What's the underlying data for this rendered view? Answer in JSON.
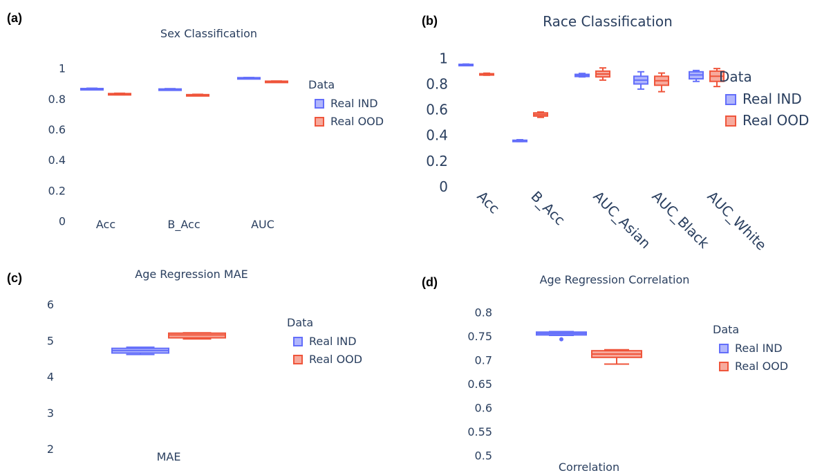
{
  "colors": {
    "ind": "#636efa",
    "ood": "#ef553b",
    "text": "#2a3f5f"
  },
  "chart_data": [
    {
      "id": "a",
      "type": "box",
      "panel_label": "(a)",
      "title": "Sex Classification",
      "categories": [
        "Acc",
        "B_Acc",
        "AUC"
      ],
      "ylim": [
        0,
        1.05
      ],
      "yticks": [
        {
          "value": 0,
          "label": "0"
        },
        {
          "value": 0.2,
          "label": "0.2"
        },
        {
          "value": 0.4,
          "label": "0.4"
        },
        {
          "value": 0.6,
          "label": "0.6"
        },
        {
          "value": 0.8,
          "label": "0.8"
        },
        {
          "value": 1,
          "label": "1"
        }
      ],
      "legend": {
        "title": "Data",
        "placement": "right"
      },
      "series": [
        {
          "name": "Real IND",
          "boxes": [
            {
              "min": 0.862,
              "q1": 0.864,
              "median": 0.866,
              "q3": 0.869,
              "max": 0.871
            },
            {
              "min": 0.86,
              "q1": 0.862,
              "median": 0.864,
              "q3": 0.866,
              "max": 0.868
            },
            {
              "min": 0.935,
              "q1": 0.937,
              "median": 0.938,
              "q3": 0.94,
              "max": 0.941
            }
          ]
        },
        {
          "name": "Real OOD",
          "boxes": [
            {
              "min": 0.828,
              "q1": 0.83,
              "median": 0.833,
              "q3": 0.836,
              "max": 0.838
            },
            {
              "min": 0.822,
              "q1": 0.824,
              "median": 0.826,
              "q3": 0.829,
              "max": 0.831
            },
            {
              "min": 0.912,
              "q1": 0.914,
              "median": 0.915,
              "q3": 0.917,
              "max": 0.918
            }
          ]
        }
      ]
    },
    {
      "id": "b",
      "type": "box",
      "panel_label": "(b)",
      "title": "Race Classification",
      "categories": [
        "Acc",
        "B_Acc",
        "AUC_Asian",
        "AUC_Black",
        "AUC_White"
      ],
      "ylim": [
        0,
        1.05
      ],
      "yticks": [
        {
          "value": 0,
          "label": "0"
        },
        {
          "value": 0.2,
          "label": "0.2"
        },
        {
          "value": 0.4,
          "label": "0.4"
        },
        {
          "value": 0.6,
          "label": "0.6"
        },
        {
          "value": 0.8,
          "label": "0.8"
        },
        {
          "value": 1,
          "label": "1"
        }
      ],
      "legend": {
        "title": "Data",
        "placement": "right"
      },
      "series": [
        {
          "name": "Real IND",
          "boxes": [
            {
              "min": 0.945,
              "q1": 0.948,
              "median": 0.95,
              "q3": 0.953,
              "max": 0.955
            },
            {
              "min": 0.352,
              "q1": 0.355,
              "median": 0.358,
              "q3": 0.362,
              "max": 0.366
            },
            {
              "min": 0.855,
              "q1": 0.858,
              "median": 0.865,
              "q3": 0.875,
              "max": 0.882
            },
            {
              "min": 0.76,
              "q1": 0.8,
              "median": 0.83,
              "q3": 0.86,
              "max": 0.895
            },
            {
              "min": 0.82,
              "q1": 0.84,
              "median": 0.87,
              "q3": 0.895,
              "max": 0.905
            }
          ]
        },
        {
          "name": "Real OOD",
          "boxes": [
            {
              "min": 0.868,
              "q1": 0.872,
              "median": 0.876,
              "q3": 0.88,
              "max": 0.884
            },
            {
              "min": 0.54,
              "q1": 0.55,
              "median": 0.562,
              "q3": 0.575,
              "max": 0.582
            },
            {
              "min": 0.83,
              "q1": 0.855,
              "median": 0.878,
              "q3": 0.9,
              "max": 0.925
            },
            {
              "min": 0.74,
              "q1": 0.79,
              "median": 0.825,
              "q3": 0.86,
              "max": 0.885
            },
            {
              "min": 0.78,
              "q1": 0.82,
              "median": 0.86,
              "q3": 0.9,
              "max": 0.92
            }
          ]
        }
      ]
    },
    {
      "id": "c",
      "type": "box",
      "panel_label": "(c)",
      "title": "Age Regression MAE",
      "categories": [
        "MAE"
      ],
      "ylim": [
        1.8,
        6.2
      ],
      "yticks": [
        {
          "value": 2,
          "label": "2"
        },
        {
          "value": 3,
          "label": "3"
        },
        {
          "value": 4,
          "label": "4"
        },
        {
          "value": 5,
          "label": "5"
        },
        {
          "value": 6,
          "label": "6"
        }
      ],
      "legend": {
        "title": "Data",
        "placement": "right"
      },
      "series": [
        {
          "name": "Real IND",
          "boxes": [
            {
              "min": 4.62,
              "q1": 4.66,
              "median": 4.73,
              "q3": 4.79,
              "max": 4.82
            }
          ]
        },
        {
          "name": "Real OOD",
          "boxes": [
            {
              "min": 5.05,
              "q1": 5.08,
              "median": 5.16,
              "q3": 5.21,
              "max": 5.22
            }
          ]
        }
      ]
    },
    {
      "id": "d",
      "type": "box",
      "panel_label": "(d)",
      "title": "Age Regression Correlation",
      "categories": [
        "Correlation"
      ],
      "ylim": [
        0.49,
        0.81
      ],
      "yticks": [
        {
          "value": 0.5,
          "label": "0.5"
        },
        {
          "value": 0.55,
          "label": "0.55"
        },
        {
          "value": 0.6,
          "label": "0.6"
        },
        {
          "value": 0.65,
          "label": "0.65"
        },
        {
          "value": 0.7,
          "label": "0.7"
        },
        {
          "value": 0.75,
          "label": "0.75"
        },
        {
          "value": 0.8,
          "label": "0.8"
        }
      ],
      "legend": {
        "title": "Data",
        "placement": "right"
      },
      "series": [
        {
          "name": "Real IND",
          "boxes": [
            {
              "min": 0.752,
              "q1": 0.753,
              "median": 0.756,
              "q3": 0.759,
              "max": 0.76,
              "outliers": [
                0.744
              ]
            }
          ]
        },
        {
          "name": "Real OOD",
          "boxes": [
            {
              "min": 0.692,
              "q1": 0.706,
              "median": 0.713,
              "q3": 0.72,
              "max": 0.722
            }
          ]
        }
      ]
    }
  ]
}
